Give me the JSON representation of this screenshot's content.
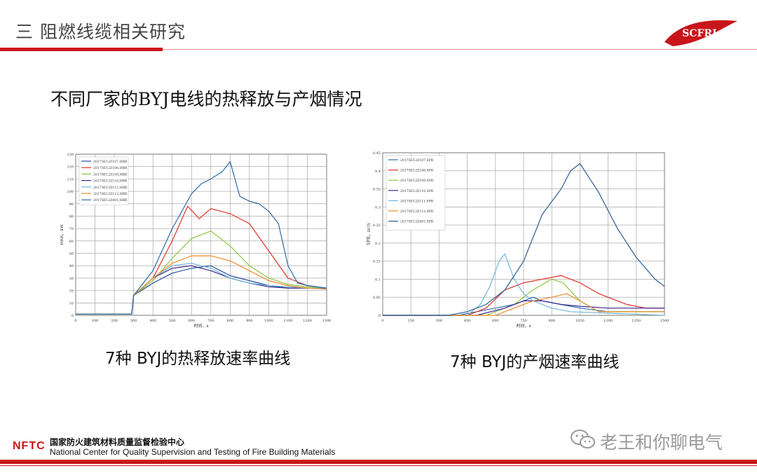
{
  "header": {
    "title": "三 阻燃线缆相关研究",
    "logo_text": "SCFRI"
  },
  "subtitle": "不同厂家的BYJ电线的热释放与产烟情况",
  "captions": {
    "hrr": "7种 BYJ的热释放速率曲线",
    "spr": "7种 BYJ的产烟速率曲线"
  },
  "footer": {
    "brand": "NFTC",
    "org_cn": "国家防火建筑材料质量监督检验中心",
    "org_en": "National Center for Quality Supervision and Testing of Fire Building Materials",
    "wechat_label": "老王和你聊电气"
  },
  "colors": {
    "accent_red": "#c8151b"
  },
  "chart_data": [
    {
      "type": "line",
      "title": "",
      "xlabel": "时间，s",
      "ylabel": "HRR，kW",
      "xlim": [
        0,
        1300
      ],
      "ylim": [
        0,
        130
      ],
      "x_ticks": [
        "0",
        "100",
        "200",
        "300",
        "400",
        "500",
        "600",
        "700",
        "800",
        "900",
        "1000",
        "1100",
        "1200",
        "1300"
      ],
      "y_ticks": [
        "0",
        "10",
        "20",
        "30",
        "40",
        "50",
        "60",
        "70",
        "80",
        "90",
        "100",
        "110",
        "120",
        "130"
      ],
      "grid": true,
      "legend_position": "top-left",
      "series": [
        {
          "name": "2017SE12Z107,HRR",
          "color": "#1f4e9c",
          "points": [
            [
              0,
              1
            ],
            [
              290,
              1
            ],
            [
              300,
              16
            ],
            [
              400,
              26
            ],
            [
              500,
              34
            ],
            [
              600,
              38
            ],
            [
              700,
              40
            ],
            [
              800,
              32
            ],
            [
              900,
              28
            ],
            [
              1000,
              24
            ],
            [
              1100,
              22
            ],
            [
              1200,
              22
            ],
            [
              1300,
              22
            ]
          ]
        },
        {
          "name": "2017SE12Z108,HRR",
          "color": "#e0332a",
          "points": [
            [
              0,
              1
            ],
            [
              290,
              1
            ],
            [
              300,
              16
            ],
            [
              400,
              30
            ],
            [
              500,
              60
            ],
            [
              580,
              88
            ],
            [
              640,
              78
            ],
            [
              700,
              86
            ],
            [
              800,
              82
            ],
            [
              900,
              74
            ],
            [
              1000,
              52
            ],
            [
              1100,
              30
            ],
            [
              1200,
              24
            ],
            [
              1300,
              22
            ]
          ]
        },
        {
          "name": "2017SE12Z109,HRR",
          "color": "#8cc63f",
          "points": [
            [
              0,
              1
            ],
            [
              290,
              1
            ],
            [
              300,
              16
            ],
            [
              400,
              28
            ],
            [
              500,
              46
            ],
            [
              600,
              62
            ],
            [
              700,
              68
            ],
            [
              800,
              56
            ],
            [
              900,
              40
            ],
            [
              1000,
              30
            ],
            [
              1100,
              25
            ],
            [
              1200,
              23
            ],
            [
              1300,
              22
            ]
          ]
        },
        {
          "name": "2017SE12Z110,HRR",
          "color": "#3b2a8c",
          "points": [
            [
              0,
              1
            ],
            [
              290,
              1
            ],
            [
              300,
              16
            ],
            [
              400,
              30
            ],
            [
              500,
              38
            ],
            [
              600,
              40
            ],
            [
              700,
              36
            ],
            [
              800,
              30
            ],
            [
              900,
              26
            ],
            [
              1000,
              23
            ],
            [
              1100,
              22
            ],
            [
              1200,
              22
            ],
            [
              1300,
              22
            ]
          ]
        },
        {
          "name": "2017SE12Z111,HRR",
          "color": "#6fb7d9",
          "points": [
            [
              0,
              1
            ],
            [
              290,
              1
            ],
            [
              300,
              16
            ],
            [
              400,
              30
            ],
            [
              500,
              40
            ],
            [
              600,
              42
            ],
            [
              700,
              38
            ],
            [
              800,
              30
            ],
            [
              900,
              26
            ],
            [
              1000,
              24
            ],
            [
              1100,
              23
            ],
            [
              1200,
              22
            ],
            [
              1300,
              22
            ]
          ]
        },
        {
          "name": "2017SE12Z112,HRR",
          "color": "#f08a2a",
          "points": [
            [
              0,
              1
            ],
            [
              290,
              1
            ],
            [
              300,
              16
            ],
            [
              400,
              30
            ],
            [
              500,
              42
            ],
            [
              600,
              48
            ],
            [
              700,
              48
            ],
            [
              800,
              44
            ],
            [
              900,
              36
            ],
            [
              1000,
              28
            ],
            [
              1100,
              24
            ],
            [
              1200,
              22
            ],
            [
              1300,
              21
            ]
          ]
        },
        {
          "name": "2017SE12Z401,HRR",
          "color": "#2b6aa8",
          "points": [
            [
              0,
              1
            ],
            [
              290,
              1
            ],
            [
              300,
              16
            ],
            [
              400,
              36
            ],
            [
              500,
              70
            ],
            [
              600,
              98
            ],
            [
              650,
              106
            ],
            [
              700,
              110
            ],
            [
              760,
              116
            ],
            [
              800,
              124
            ],
            [
              850,
              96
            ],
            [
              900,
              92
            ],
            [
              950,
              90
            ],
            [
              1000,
              84
            ],
            [
              1050,
              74
            ],
            [
              1100,
              40
            ],
            [
              1150,
              26
            ],
            [
              1200,
              24
            ],
            [
              1300,
              22
            ]
          ]
        }
      ]
    },
    {
      "type": "line",
      "title": "",
      "xlabel": "时间，s",
      "ylabel": "SPR，m²/s",
      "xlim": [
        0,
        1500
      ],
      "ylim": [
        0,
        0.45
      ],
      "x_ticks": [
        "0",
        "150",
        "300",
        "450",
        "600",
        "750",
        "900",
        "1050",
        "1200",
        "1350",
        "1500"
      ],
      "y_ticks": [
        "0",
        "0.05",
        "0.1",
        "0.15",
        "0.2",
        "0.25",
        "0.3",
        "0.35",
        "0.4",
        "0.45"
      ],
      "grid": true,
      "legend_position": "top-left",
      "series": [
        {
          "name": "2017SE12Z107,SPR",
          "color": "#2f6fb0",
          "points": [
            [
              0,
              0
            ],
            [
              400,
              0
            ],
            [
              500,
              0.01
            ],
            [
              600,
              0.02
            ],
            [
              700,
              0.03
            ],
            [
              800,
              0.05
            ],
            [
              850,
              0.04
            ],
            [
              950,
              0.03
            ],
            [
              1050,
              0.02
            ],
            [
              1200,
              0.01
            ],
            [
              1500,
              0.01
            ]
          ]
        },
        {
          "name": "2017SE12Z108,SPR",
          "color": "#e0332a",
          "points": [
            [
              0,
              0
            ],
            [
              450,
              0
            ],
            [
              550,
              0.02
            ],
            [
              650,
              0.07
            ],
            [
              750,
              0.09
            ],
            [
              850,
              0.1
            ],
            [
              950,
              0.11
            ],
            [
              1050,
              0.09
            ],
            [
              1150,
              0.06
            ],
            [
              1300,
              0.03
            ],
            [
              1400,
              0.02
            ],
            [
              1500,
              0.02
            ]
          ]
        },
        {
          "name": "2017SE12Z109,SPR",
          "color": "#8cc63f",
          "points": [
            [
              0,
              0
            ],
            [
              550,
              0
            ],
            [
              700,
              0.03
            ],
            [
              800,
              0.07
            ],
            [
              900,
              0.1
            ],
            [
              960,
              0.09
            ],
            [
              1050,
              0.04
            ],
            [
              1150,
              0.01
            ],
            [
              1500,
              0.01
            ]
          ]
        },
        {
          "name": "2017SE12Z110,SPR",
          "color": "#3b2a8c",
          "points": [
            [
              0,
              0
            ],
            [
              500,
              0
            ],
            [
              650,
              0.02
            ],
            [
              750,
              0.04
            ],
            [
              850,
              0.04
            ],
            [
              950,
              0.03
            ],
            [
              1050,
              0.025
            ],
            [
              1200,
              0.02
            ],
            [
              1350,
              0.02
            ],
            [
              1500,
              0.02
            ]
          ]
        },
        {
          "name": "2017SE12Z111,SPR",
          "color": "#6fb7d9",
          "points": [
            [
              0,
              0
            ],
            [
              450,
              0
            ],
            [
              520,
              0.03
            ],
            [
              570,
              0.08
            ],
            [
              620,
              0.15
            ],
            [
              650,
              0.17
            ],
            [
              700,
              0.1
            ],
            [
              750,
              0.06
            ],
            [
              800,
              0.04
            ],
            [
              900,
              0.02
            ],
            [
              1000,
              0.01
            ],
            [
              1500,
              0
            ]
          ]
        },
        {
          "name": "2017SE12Z112,SPR",
          "color": "#f08a2a",
          "points": [
            [
              0,
              0
            ],
            [
              600,
              0
            ],
            [
              700,
              0.02
            ],
            [
              800,
              0.04
            ],
            [
              900,
              0.05
            ],
            [
              980,
              0.06
            ],
            [
              1050,
              0.04
            ],
            [
              1150,
              0.01
            ],
            [
              1500,
              0.01
            ]
          ]
        },
        {
          "name": "2017SE12Z401,SPR",
          "color": "#2b5f96",
          "points": [
            [
              0,
              0
            ],
            [
              350,
              0
            ],
            [
              450,
              0.01
            ],
            [
              550,
              0.03
            ],
            [
              650,
              0.07
            ],
            [
              750,
              0.15
            ],
            [
              850,
              0.28
            ],
            [
              950,
              0.35
            ],
            [
              1000,
              0.4
            ],
            [
              1050,
              0.42
            ],
            [
              1100,
              0.38
            ],
            [
              1150,
              0.34
            ],
            [
              1250,
              0.24
            ],
            [
              1350,
              0.16
            ],
            [
              1450,
              0.1
            ],
            [
              1500,
              0.08
            ]
          ]
        }
      ]
    }
  ]
}
